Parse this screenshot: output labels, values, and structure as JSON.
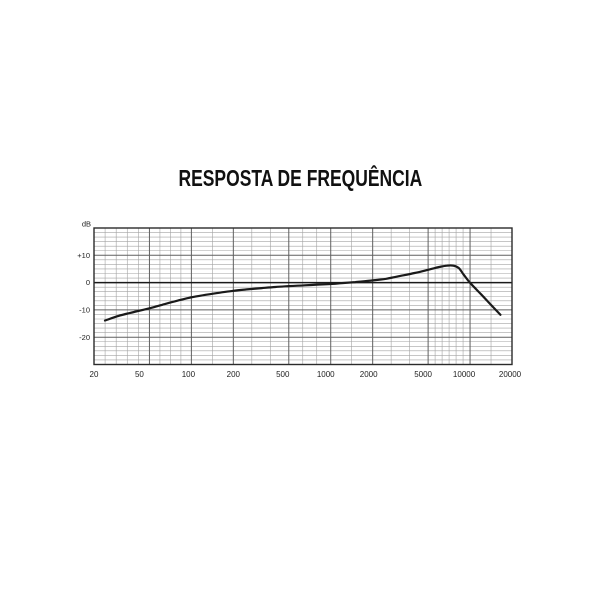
{
  "title": "RESPOSTA DE FREQUÊNCIA",
  "chart_data": {
    "type": "line",
    "title": "RESPOSTA DE FREQUÊNCIA",
    "x_axis": {
      "unit": "Hz",
      "scale": "log",
      "min": 20,
      "max": 20000,
      "ticks": [
        {
          "value": 20,
          "label": "20",
          "dx": 0
        },
        {
          "value": 50,
          "label": "50",
          "dx": -10
        },
        {
          "value": 100,
          "label": "100",
          "dx": -3
        },
        {
          "value": 200,
          "label": "200",
          "dx": 0
        },
        {
          "value": 500,
          "label": "500",
          "dx": -6
        },
        {
          "value": 1000,
          "label": "1000",
          "dx": -5
        },
        {
          "value": 2000,
          "label": "2000",
          "dx": -4
        },
        {
          "value": 5000,
          "label": "5000",
          "dx": -5
        },
        {
          "value": 10000,
          "label": "10000",
          "dx": -6
        },
        {
          "value": 20000,
          "label": "20000",
          "dx": -2
        }
      ],
      "minor_divisions_per_interval": [
        5,
        4,
        2,
        3,
        3,
        2,
        3,
        6,
        2
      ]
    },
    "y_axis": {
      "label": "dB",
      "min": -30,
      "max": 20,
      "ticks": [
        {
          "value": 10,
          "label": "+10"
        },
        {
          "value": 0,
          "label": "0"
        },
        {
          "value": -10,
          "label": "-10"
        },
        {
          "value": -20,
          "label": "-20"
        }
      ],
      "minor_intervals_total": 30
    },
    "grid": true,
    "legend": false,
    "series": [
      {
        "name": "frequency-response",
        "points": [
          [
            24,
            -13.9
          ],
          [
            30,
            -12.2
          ],
          [
            40,
            -10.6
          ],
          [
            50,
            -9.4
          ],
          [
            65,
            -7.8
          ],
          [
            80,
            -6.6
          ],
          [
            100,
            -5.4
          ],
          [
            130,
            -4.4
          ],
          [
            160,
            -3.7
          ],
          [
            200,
            -3.0
          ],
          [
            250,
            -2.5
          ],
          [
            320,
            -2.0
          ],
          [
            400,
            -1.6
          ],
          [
            500,
            -1.3
          ],
          [
            650,
            -1.0
          ],
          [
            800,
            -0.75
          ],
          [
            1000,
            -0.5
          ],
          [
            1200,
            -0.2
          ],
          [
            1500,
            0.2
          ],
          [
            2000,
            0.8
          ],
          [
            2500,
            1.4
          ],
          [
            3000,
            2.2
          ],
          [
            4000,
            3.5
          ],
          [
            5000,
            4.7
          ],
          [
            6000,
            5.7
          ],
          [
            6800,
            6.2
          ],
          [
            7600,
            6.2
          ],
          [
            8300,
            5.3
          ],
          [
            9000,
            2.9
          ],
          [
            10000,
            -0.1
          ],
          [
            12000,
            -4.3
          ],
          [
            14000,
            -7.9
          ],
          [
            16500,
            -11.8
          ]
        ]
      }
    ]
  },
  "colors": {
    "background": "#ffffff",
    "curve": "#1a1a1a",
    "grid_minor": "#a3a3a3",
    "grid_major": "#606060",
    "zero_line": "#1a1a1a",
    "border": "#2b2b2b",
    "text": "#222222"
  }
}
